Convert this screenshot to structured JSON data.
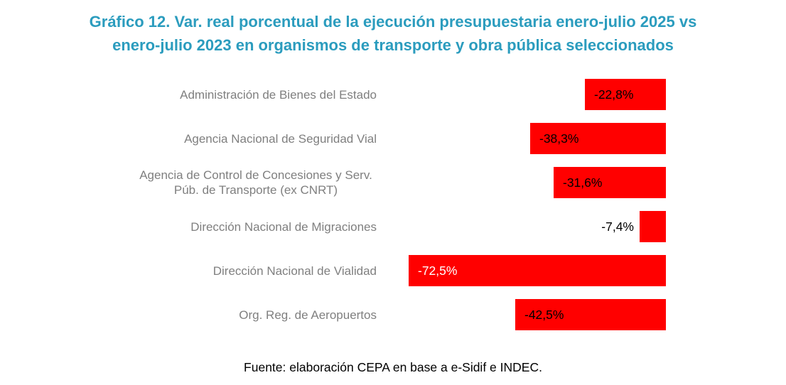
{
  "title_lines": [
    "Gráfico 12. Var. real porcentual de la ejecución presupuestaria enero-julio 2025 vs",
    "enero-julio 2023 en organismos de transporte y obra pública seleccionados"
  ],
  "source": "Fuente: elaboración CEPA en base a e-Sidif e INDEC.",
  "colors": {
    "bar": "#FF0000",
    "title": "#2B9CBE",
    "category_label": "#7F7F7F",
    "value_label_default": "#000000",
    "value_label_inverse": "#FFFFFF"
  },
  "chart_data": {
    "type": "bar",
    "orientation": "horizontal",
    "title": "Gráfico 12. Var. real porcentual de la ejecución presupuestaria enero-julio 2025 vs enero-julio 2023 en organismos de transporte y obra pública seleccionados",
    "categories": [
      "Administración de Bienes del Estado",
      "Agencia Nacional de Seguridad Vial",
      "Agencia de Control de Concesiones y Serv. Púb. de Transporte (ex CNRT)",
      "Dirección Nacional de Migraciones",
      "Dirección Nacional de Vialidad",
      "Org. Reg. de Aeropuertos"
    ],
    "values": [
      -22.8,
      -38.3,
      -31.6,
      -7.4,
      -72.5,
      -42.5
    ],
    "value_labels": [
      "-22,8%",
      "-38,3%",
      "-31,6%",
      "-7,4%",
      "-72,5%",
      "-42,5%"
    ],
    "value_label_styles": [
      {
        "position": "inside",
        "color": "#000000"
      },
      {
        "position": "inside",
        "color": "#000000"
      },
      {
        "position": "inside",
        "color": "#000000"
      },
      {
        "position": "outside",
        "color": "#000000"
      },
      {
        "position": "inside",
        "color": "#FFFFFF"
      },
      {
        "position": "inside",
        "color": "#000000"
      }
    ],
    "xlim": [
      -72.5,
      0
    ],
    "bar_color": "#FF0000",
    "grid": false,
    "legend": false,
    "axis_labels_visible": false,
    "source": "Fuente: elaboración CEPA en base a e-Sidif e INDEC."
  }
}
